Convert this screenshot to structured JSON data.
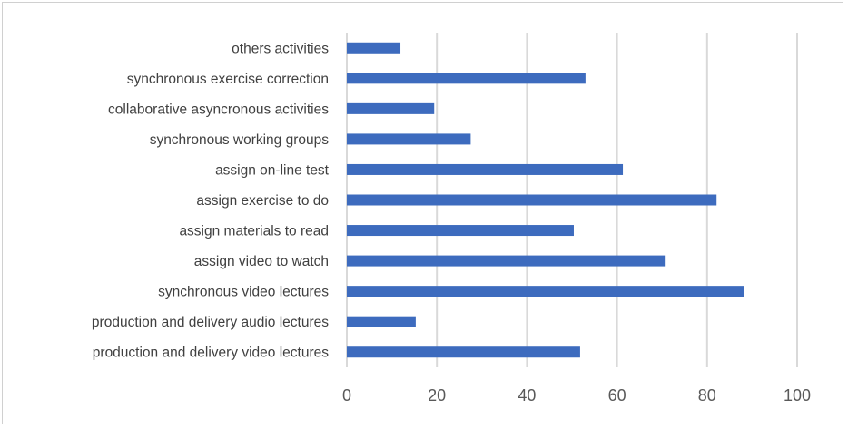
{
  "chart_data": {
    "type": "bar",
    "orientation": "horizontal",
    "categories": [
      "production and delivery video lectures",
      "production and delivery audio lectures",
      "synchronous video lectures",
      "assign video to watch",
      "assign materials to read",
      "assign exercise to do",
      "assign on-line test",
      "synchronous working groups",
      "collaborative asyncronous activities",
      "synchronous exercise correction",
      "others activities"
    ],
    "values": [
      51.8,
      15.3,
      88.2,
      70.6,
      50.4,
      82.1,
      61.3,
      27.5,
      19.4,
      53.0,
      11.9
    ],
    "title": "",
    "xlabel": "",
    "ylabel": "",
    "xlim": [
      0,
      100
    ],
    "xticks": [
      "0",
      "20",
      "40",
      "60",
      "80",
      "100"
    ],
    "grid": "vertical",
    "legend": "none",
    "bar_color": "#3D6BBE",
    "grid_color": "#D9D9D9"
  }
}
